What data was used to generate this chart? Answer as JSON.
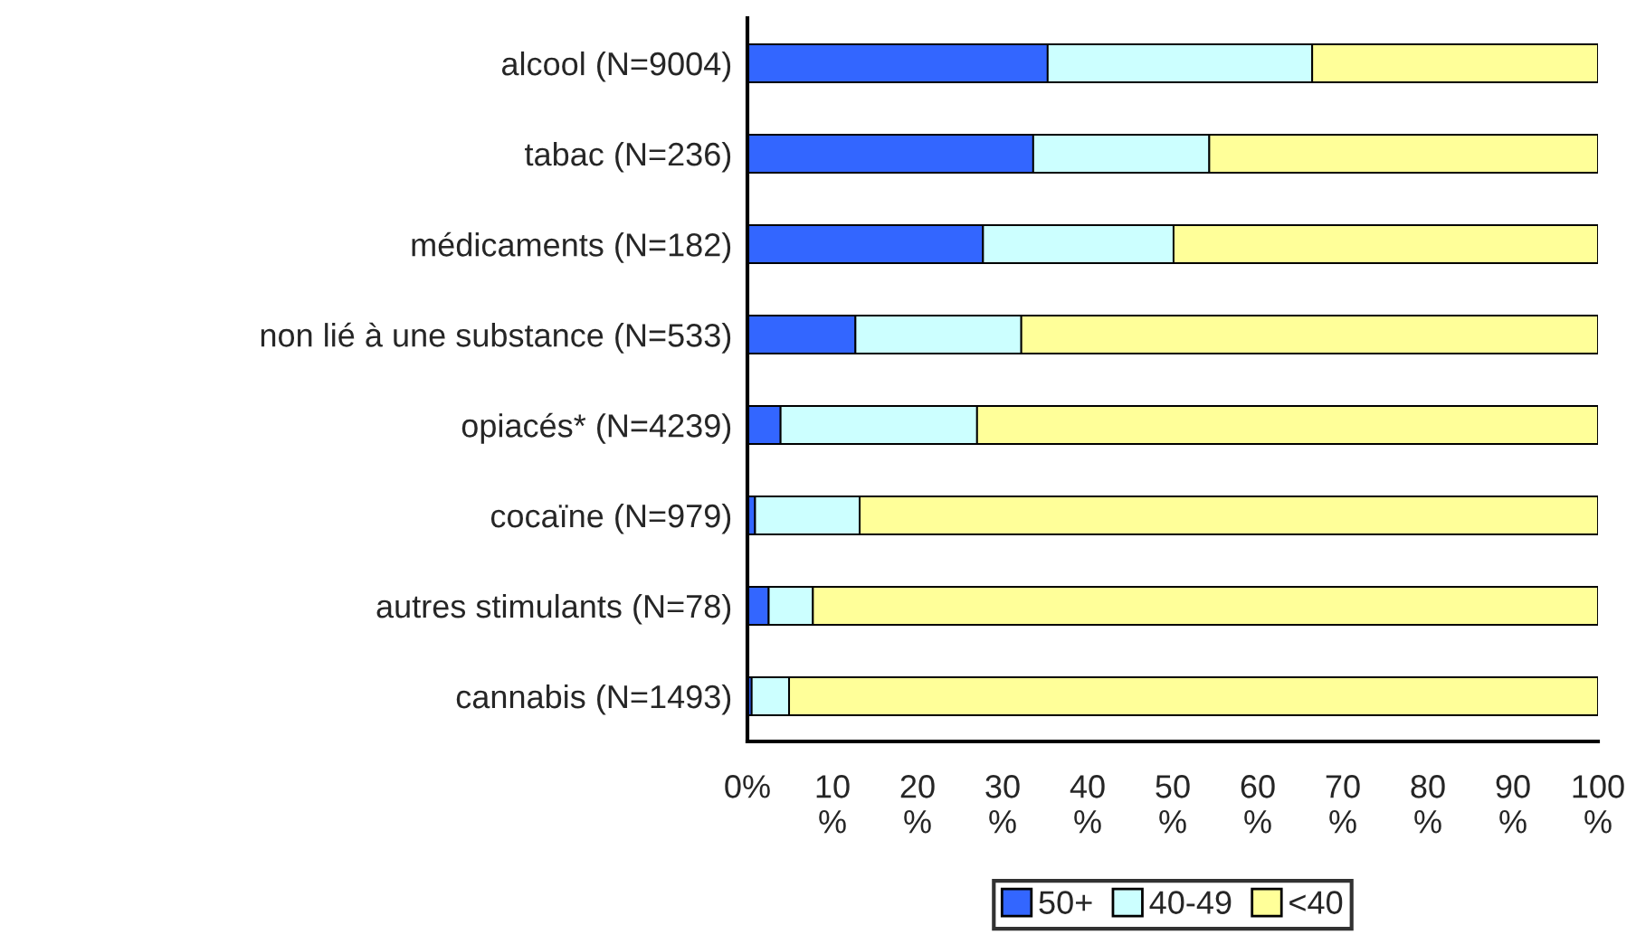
{
  "chart_data": {
    "type": "bar",
    "orientation": "horizontal",
    "stacked": true,
    "categories": [
      "alcool (N=9004)",
      "tabac (N=236)",
      "médicaments (N=182)",
      "non lié à une substance (N=533)",
      "opiacés* (N=4239)",
      "cocaïne (N=979)",
      "autres stimulants (N=78)",
      "cannabis (N=1493)"
    ],
    "series": [
      {
        "name": "50+",
        "color": "#3366ff",
        "values": [
          35.3,
          33.6,
          27.7,
          12.7,
          3.9,
          0.9,
          2.5,
          0.5
        ]
      },
      {
        "name": "40-49",
        "color": "#ccffff",
        "values": [
          31.1,
          20.7,
          22.4,
          19.5,
          23.1,
          12.3,
          5.2,
          4.4
        ]
      },
      {
        "name": "<40",
        "color": "#ffff99",
        "values": [
          33.6,
          45.7,
          49.9,
          67.8,
          73.0,
          86.8,
          92.3,
          95.1
        ]
      }
    ],
    "xlim": [
      0,
      100
    ],
    "xticks": [
      {
        "value": 0,
        "label": "0%"
      },
      {
        "value": 10,
        "label": "10\n%"
      },
      {
        "value": 20,
        "label": "20\n%"
      },
      {
        "value": 30,
        "label": "30\n%"
      },
      {
        "value": 40,
        "label": "40\n%"
      },
      {
        "value": 50,
        "label": "50\n%"
      },
      {
        "value": 60,
        "label": "60\n%"
      },
      {
        "value": 70,
        "label": "70\n%"
      },
      {
        "value": 80,
        "label": "80\n%"
      },
      {
        "value": 90,
        "label": "90\n%"
      },
      {
        "value": 100,
        "label": "100\n%"
      }
    ],
    "grid": false,
    "legend": "bottom"
  }
}
